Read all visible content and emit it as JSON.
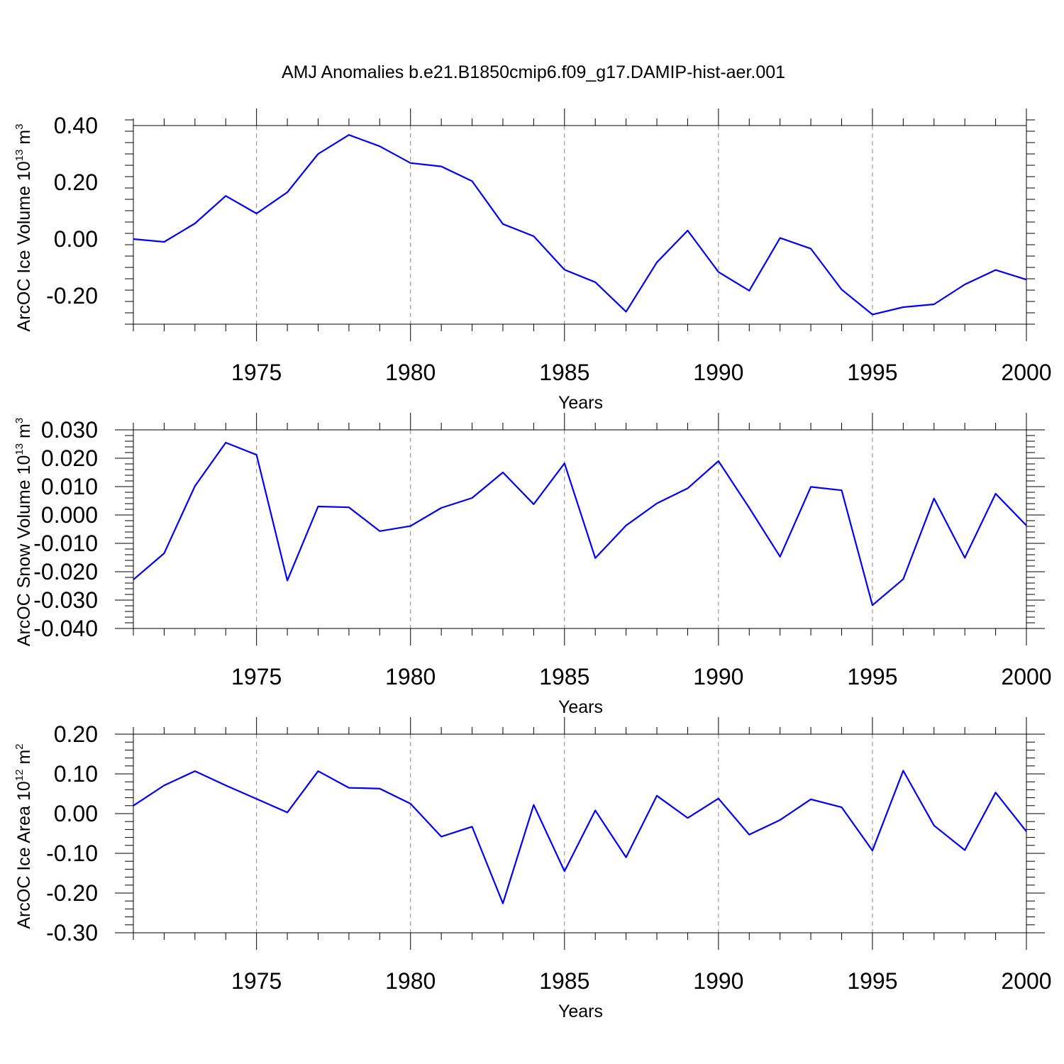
{
  "title": "AMJ Anomalies b.e21.B1850cmip6.f09_g17.DAMIP-hist-aer.001",
  "colors": {
    "line": "#0000ff",
    "grid": "#888888",
    "axis": "#000000"
  },
  "chart_data": [
    {
      "type": "line",
      "title": "AMJ Anomalies b.e21.B1850cmip6.f09_g17.DAMIP-hist-aer.001",
      "xlabel": "Years",
      "ylabel": {
        "text": "ArcOC Ice Volume 10",
        "sup1": "13",
        "mid": " m",
        "sup2": "3"
      },
      "xlim": [
        1971,
        2000
      ],
      "ylim": [
        -0.3,
        0.4
      ],
      "xticks": [
        1975,
        1980,
        1985,
        1990,
        1995,
        2000
      ],
      "yticks": [
        -0.2,
        0.0,
        0.2,
        0.4
      ],
      "ytick_labels": [
        "-0.20",
        "0.00",
        "0.20",
        "0.40"
      ],
      "grid": "vertical dashed at labeled years",
      "x": [
        1971,
        1972,
        1973,
        1974,
        1975,
        1976,
        1977,
        1978,
        1979,
        1980,
        1981,
        1982,
        1983,
        1984,
        1985,
        1986,
        1987,
        1988,
        1989,
        1990,
        1991,
        1992,
        1993,
        1994,
        1995,
        1996,
        1997,
        1998,
        1999,
        2000
      ],
      "series": [
        {
          "name": "ArcOC Ice Volume",
          "values": [
            0.0,
            -0.01,
            0.055,
            0.152,
            0.09,
            0.165,
            0.3,
            0.367,
            0.327,
            0.268,
            0.256,
            0.204,
            0.053,
            0.01,
            -0.108,
            -0.152,
            -0.256,
            -0.082,
            0.03,
            -0.116,
            -0.182,
            0.004,
            -0.034,
            -0.178,
            -0.266,
            -0.24,
            -0.23,
            -0.16,
            -0.109,
            -0.143
          ]
        }
      ]
    },
    {
      "type": "line",
      "xlabel": "Years",
      "ylabel": {
        "text": "ArcOC Snow Volume 10",
        "sup1": "13",
        "mid": " m",
        "sup2": "3"
      },
      "xlim": [
        1971,
        2000
      ],
      "ylim": [
        -0.04,
        0.03
      ],
      "xticks": [
        1975,
        1980,
        1985,
        1990,
        1995,
        2000
      ],
      "yticks": [
        -0.04,
        -0.03,
        -0.02,
        -0.01,
        0.0,
        0.01,
        0.02,
        0.03
      ],
      "ytick_labels": [
        "-0.040",
        "-0.030",
        "-0.020",
        "-0.010",
        "0.000",
        "0.010",
        "0.020",
        "0.030"
      ],
      "grid": "vertical dashed at labeled years",
      "x": [
        1971,
        1972,
        1973,
        1974,
        1975,
        1976,
        1977,
        1978,
        1979,
        1980,
        1981,
        1982,
        1983,
        1984,
        1985,
        1986,
        1987,
        1988,
        1989,
        1990,
        1991,
        1992,
        1993,
        1994,
        1995,
        1996,
        1997,
        1998,
        1999,
        2000
      ],
      "series": [
        {
          "name": "ArcOC Snow Volume",
          "values": [
            -0.0228,
            -0.0135,
            0.0102,
            0.0255,
            0.0212,
            -0.0231,
            0.003,
            0.0027,
            -0.0057,
            -0.0039,
            0.0025,
            0.006,
            0.015,
            0.0038,
            0.0182,
            -0.0152,
            -0.0037,
            0.0041,
            0.0094,
            0.019,
            0.0025,
            -0.0147,
            0.0099,
            0.0087,
            -0.0318,
            -0.0226,
            0.0058,
            -0.0151,
            0.0075,
            -0.0037
          ]
        }
      ]
    },
    {
      "type": "line",
      "xlabel": "Years",
      "ylabel": {
        "text": "ArcOC Ice Area 10",
        "sup1": "12",
        "mid": " m",
        "sup2": "2"
      },
      "xlim": [
        1971,
        2000
      ],
      "ylim": [
        -0.3,
        0.2
      ],
      "xticks": [
        1975,
        1980,
        1985,
        1990,
        1995,
        2000
      ],
      "yticks": [
        -0.3,
        -0.2,
        -0.1,
        0.0,
        0.1,
        0.2
      ],
      "ytick_labels": [
        "-0.30",
        "-0.20",
        "-0.10",
        "0.00",
        "0.10",
        "0.20"
      ],
      "grid": "vertical dashed at labeled years",
      "x": [
        1971,
        1972,
        1973,
        1974,
        1975,
        1976,
        1977,
        1978,
        1979,
        1980,
        1981,
        1982,
        1983,
        1984,
        1985,
        1986,
        1987,
        1988,
        1989,
        1990,
        1991,
        1992,
        1993,
        1994,
        1995,
        1996,
        1997,
        1998,
        1999,
        2000
      ],
      "series": [
        {
          "name": "ArcOC Ice Area",
          "values": [
            0.02,
            0.071,
            0.107,
            0.071,
            0.037,
            0.003,
            0.107,
            0.065,
            0.063,
            0.025,
            -0.058,
            -0.033,
            -0.226,
            0.022,
            -0.145,
            0.008,
            -0.11,
            0.045,
            -0.011,
            0.038,
            -0.053,
            -0.016,
            0.036,
            0.016,
            -0.093,
            0.108,
            -0.03,
            -0.092,
            0.053,
            -0.045
          ]
        }
      ]
    }
  ]
}
